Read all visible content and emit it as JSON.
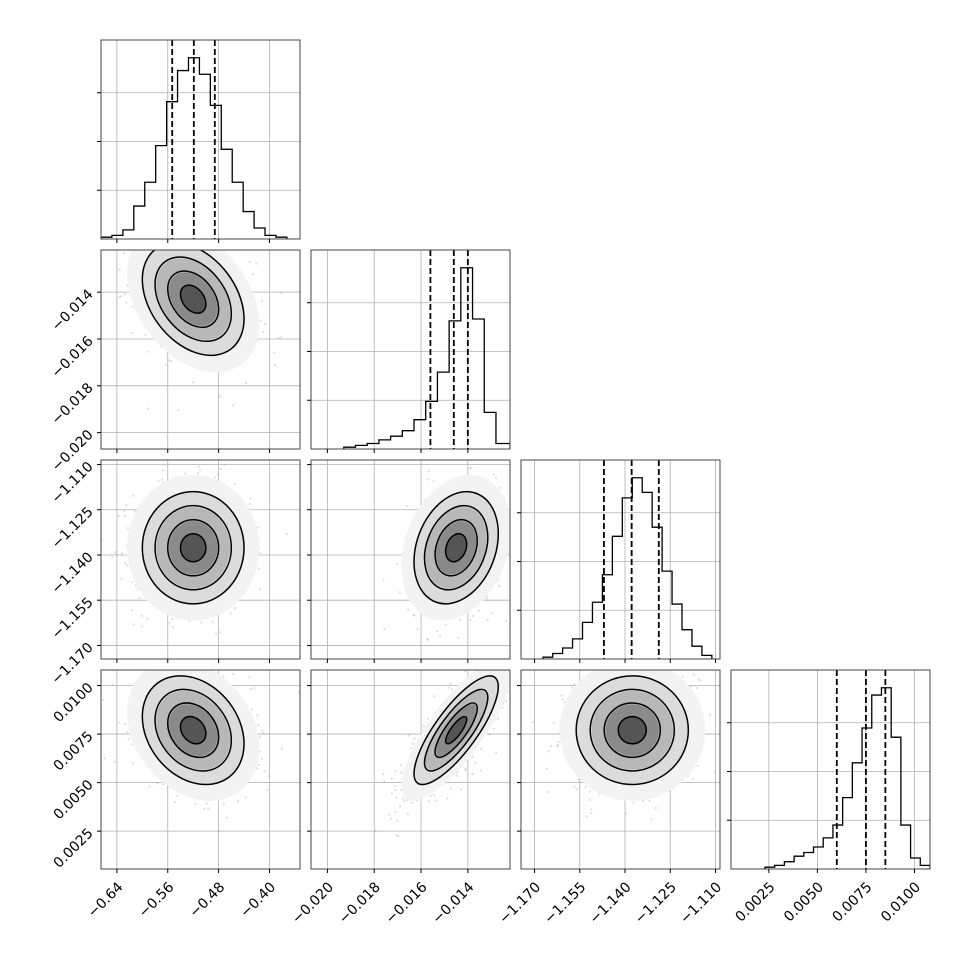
{
  "chart_data": {
    "type": "corner",
    "n_params": 4,
    "labels": [
      "",
      "",
      "",
      ""
    ],
    "params": [
      {
        "range": [
          -0.665,
          -0.352
        ],
        "ticks": [
          -0.64,
          -0.56,
          -0.48,
          -0.4
        ],
        "tick_labels": [
          "−0.64",
          "−0.56",
          "−0.48",
          "−0.40"
        ],
        "quantiles": [
          -0.553,
          -0.519,
          -0.486
        ],
        "hist": {
          "edges": [
            -0.665,
            -0.6478,
            -0.6306,
            -0.6134,
            -0.5962,
            -0.579,
            -0.5618,
            -0.5446,
            -0.5274,
            -0.5102,
            -0.493,
            -0.4758,
            -0.4586,
            -0.4414,
            -0.4242,
            -0.407,
            -0.3898,
            -0.3726
          ],
          "heights": [
            0.01,
            0.02,
            0.05,
            0.18,
            0.31,
            0.51,
            0.75,
            0.92,
            0.99,
            0.9,
            0.73,
            0.49,
            0.31,
            0.15,
            0.06,
            0.02,
            0.01
          ]
        }
      },
      {
        "range": [
          -0.0207,
          -0.0122
        ],
        "ticks": [
          -0.02,
          -0.018,
          -0.016,
          -0.014
        ],
        "tick_labels": [
          "−0.020",
          "−0.018",
          "−0.016",
          "−0.014"
        ],
        "quantiles": [
          -0.0156,
          -0.0146,
          -0.014
        ],
        "hist": {
          "edges": [
            -0.0193,
            -0.0188,
            -0.0183,
            -0.0178,
            -0.0173,
            -0.0168,
            -0.0163,
            -0.0158,
            -0.0153,
            -0.0148,
            -0.0143,
            -0.0138,
            -0.0133,
            -0.0128,
            -0.0122
          ],
          "heights": [
            0.01,
            0.02,
            0.03,
            0.05,
            0.07,
            0.1,
            0.16,
            0.26,
            0.42,
            0.7,
            0.99,
            0.71,
            0.2,
            0.03
          ]
        }
      },
      {
        "range": [
          -1.1745,
          -1.1085
        ],
        "ticks": [
          -1.17,
          -1.155,
          -1.14,
          -1.125,
          -1.11
        ],
        "tick_labels": [
          "−1.170",
          "−1.155",
          "−1.140",
          "−1.125",
          "−1.110"
        ],
        "quantiles": [
          -1.147,
          -1.1378,
          -1.1288
        ],
        "hist": {
          "edges": [
            -1.1672,
            -1.164,
            -1.1607,
            -1.1574,
            -1.1541,
            -1.1508,
            -1.1475,
            -1.1442,
            -1.1409,
            -1.1376,
            -1.1343,
            -1.131,
            -1.1277,
            -1.1244,
            -1.1211,
            -1.1178,
            -1.1145,
            -1.1112
          ],
          "heights": [
            0.01,
            0.03,
            0.06,
            0.11,
            0.2,
            0.31,
            0.46,
            0.67,
            0.88,
            0.99,
            0.91,
            0.72,
            0.48,
            0.3,
            0.16,
            0.07,
            0.02
          ]
        }
      },
      {
        "range": [
          0.00055,
          0.0108
        ],
        "ticks": [
          0.0025,
          0.005,
          0.0075,
          0.01
        ],
        "tick_labels": [
          "0.0025",
          "0.0050",
          "0.0075",
          "0.0100"
        ],
        "quantiles": [
          0.006,
          0.0075,
          0.0085
        ],
        "hist": {
          "edges": [
            0.0023,
            0.0028,
            0.0033,
            0.0038,
            0.0043,
            0.0048,
            0.0053,
            0.0058,
            0.0063,
            0.0068,
            0.0073,
            0.0078,
            0.0083,
            0.0088,
            0.0093,
            0.0098,
            0.0103,
            0.0108
          ],
          "heights": [
            0.01,
            0.02,
            0.04,
            0.07,
            0.09,
            0.12,
            0.17,
            0.24,
            0.39,
            0.58,
            0.77,
            0.95,
            0.99,
            0.72,
            0.24,
            0.06,
            0.02
          ]
        }
      }
    ],
    "pairs": [
      {
        "x": 0,
        "y": 1,
        "mean": [
          -0.52,
          -0.0143
        ],
        "sd": [
          0.04,
          0.0012
        ],
        "rho": -0.35,
        "contours": [
          0.11,
          0.39,
          0.67,
          0.86
        ]
      },
      {
        "x": 0,
        "y": 2,
        "mean": [
          -0.52,
          -1.1376
        ],
        "sd": [
          0.04,
          0.0093
        ],
        "rho": 0.0,
        "contours": [
          0.11,
          0.39,
          0.67,
          0.86
        ]
      },
      {
        "x": 1,
        "y": 2,
        "mean": [
          -0.0145,
          -1.1376
        ],
        "sd": [
          0.0009,
          0.0093
        ],
        "rho": 0.25,
        "contours": [
          0.11,
          0.39,
          0.67,
          0.86
        ]
      },
      {
        "x": 0,
        "y": 3,
        "mean": [
          -0.52,
          0.0077
        ],
        "sd": [
          0.04,
          0.0014
        ],
        "rho": -0.25,
        "contours": [
          0.11,
          0.39,
          0.67,
          0.86
        ]
      },
      {
        "x": 1,
        "y": 3,
        "mean": [
          -0.0145,
          0.0077
        ],
        "sd": [
          0.0009,
          0.0014
        ],
        "rho": 0.8,
        "contours": [
          0.11,
          0.39,
          0.67,
          0.86
        ]
      },
      {
        "x": 2,
        "y": 3,
        "mean": [
          -1.1376,
          0.0077
        ],
        "sd": [
          0.0093,
          0.0014
        ],
        "rho": 0.0,
        "contours": [
          0.11,
          0.39,
          0.67,
          0.86
        ]
      }
    ],
    "grid": true,
    "point_color": "#9e9e9e",
    "line_color": "#000000"
  }
}
